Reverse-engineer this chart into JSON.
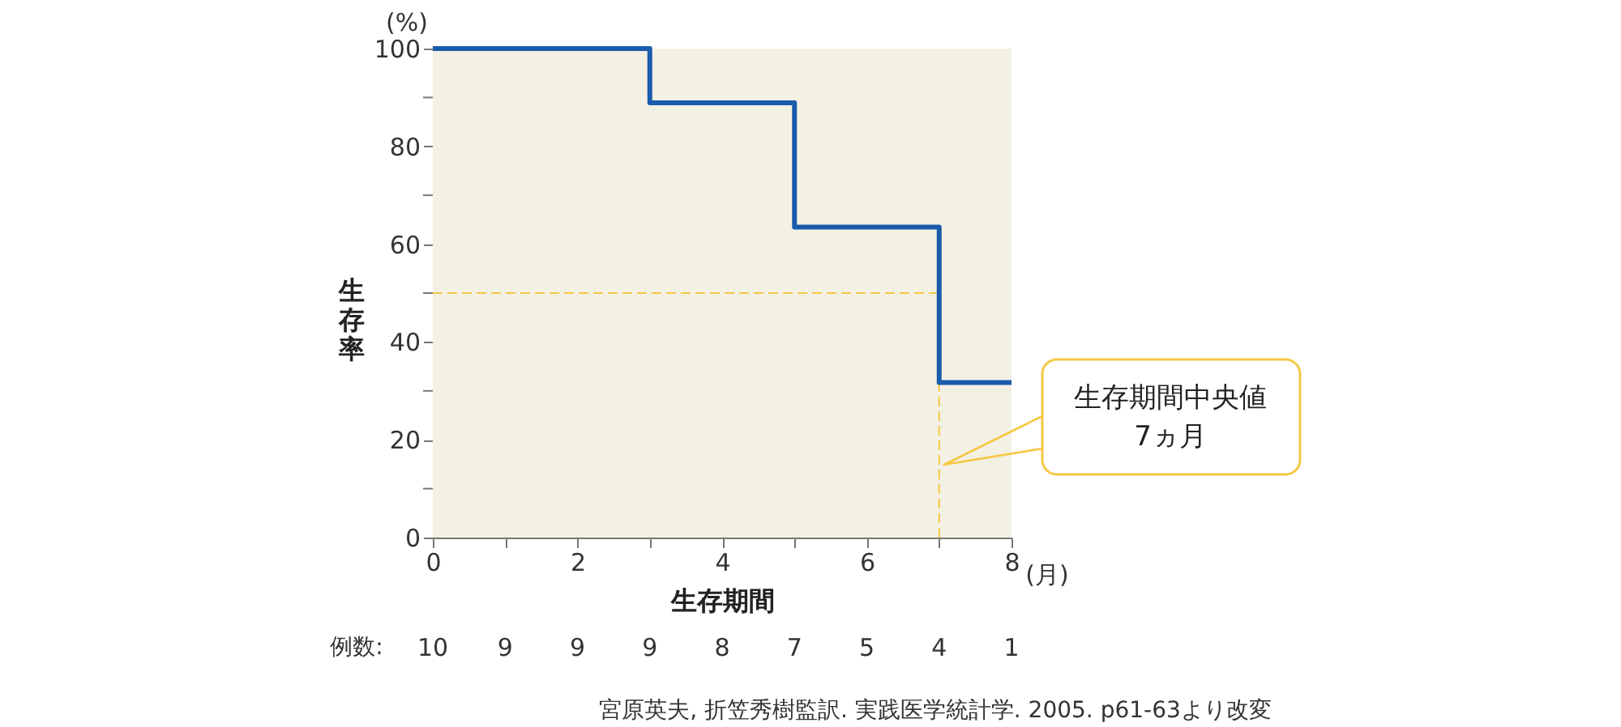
{
  "chart_data": {
    "type": "step",
    "xlabel": "生存期間",
    "ylabel": "生存率",
    "x": [
      0,
      3,
      5,
      7,
      8
    ],
    "series": [
      {
        "color": "#1a5cab",
        "values": [
          100,
          88.9,
          63.5,
          31.7,
          31.7
        ]
      }
    ],
    "xlim": [
      0,
      8
    ],
    "ylim": [
      0,
      100
    ],
    "xticks": [
      0,
      {
        "value": 1,
        "label": null
      },
      2,
      {
        "value": 3,
        "label": null
      },
      4,
      {
        "value": 5,
        "label": null
      },
      6,
      {
        "value": 7,
        "label": null
      },
      8
    ],
    "yticks": [
      0,
      {
        "value": 10,
        "label": null
      },
      20,
      {
        "value": 30,
        "label": null
      },
      40,
      {
        "value": 50,
        "label": null
      },
      60,
      {
        "value": 70,
        "label": null
      },
      80,
      {
        "value": 90,
        "label": null
      },
      100
    ],
    "ref_lines": [
      {
        "axis": "y",
        "value": 50,
        "color": "#f5c842",
        "line_style": "dashed"
      },
      {
        "axis": "x",
        "value": 7,
        "color": "#f5c842",
        "line_style": "dashed"
      }
    ],
    "annotations": [
      "(%)",
      "(月)",
      "例数:",
      "生存期間中央値\n7ヵ月",
      "10",
      "9",
      "9",
      "9",
      "8",
      "7",
      "5",
      "4",
      "1",
      "宮原英夫, 折笠秀樹監訳. 実践医学統計学. 2005. p61-63より改変"
    ],
    "grid": false,
    "marker": "none",
    "line_style": "solid"
  }
}
